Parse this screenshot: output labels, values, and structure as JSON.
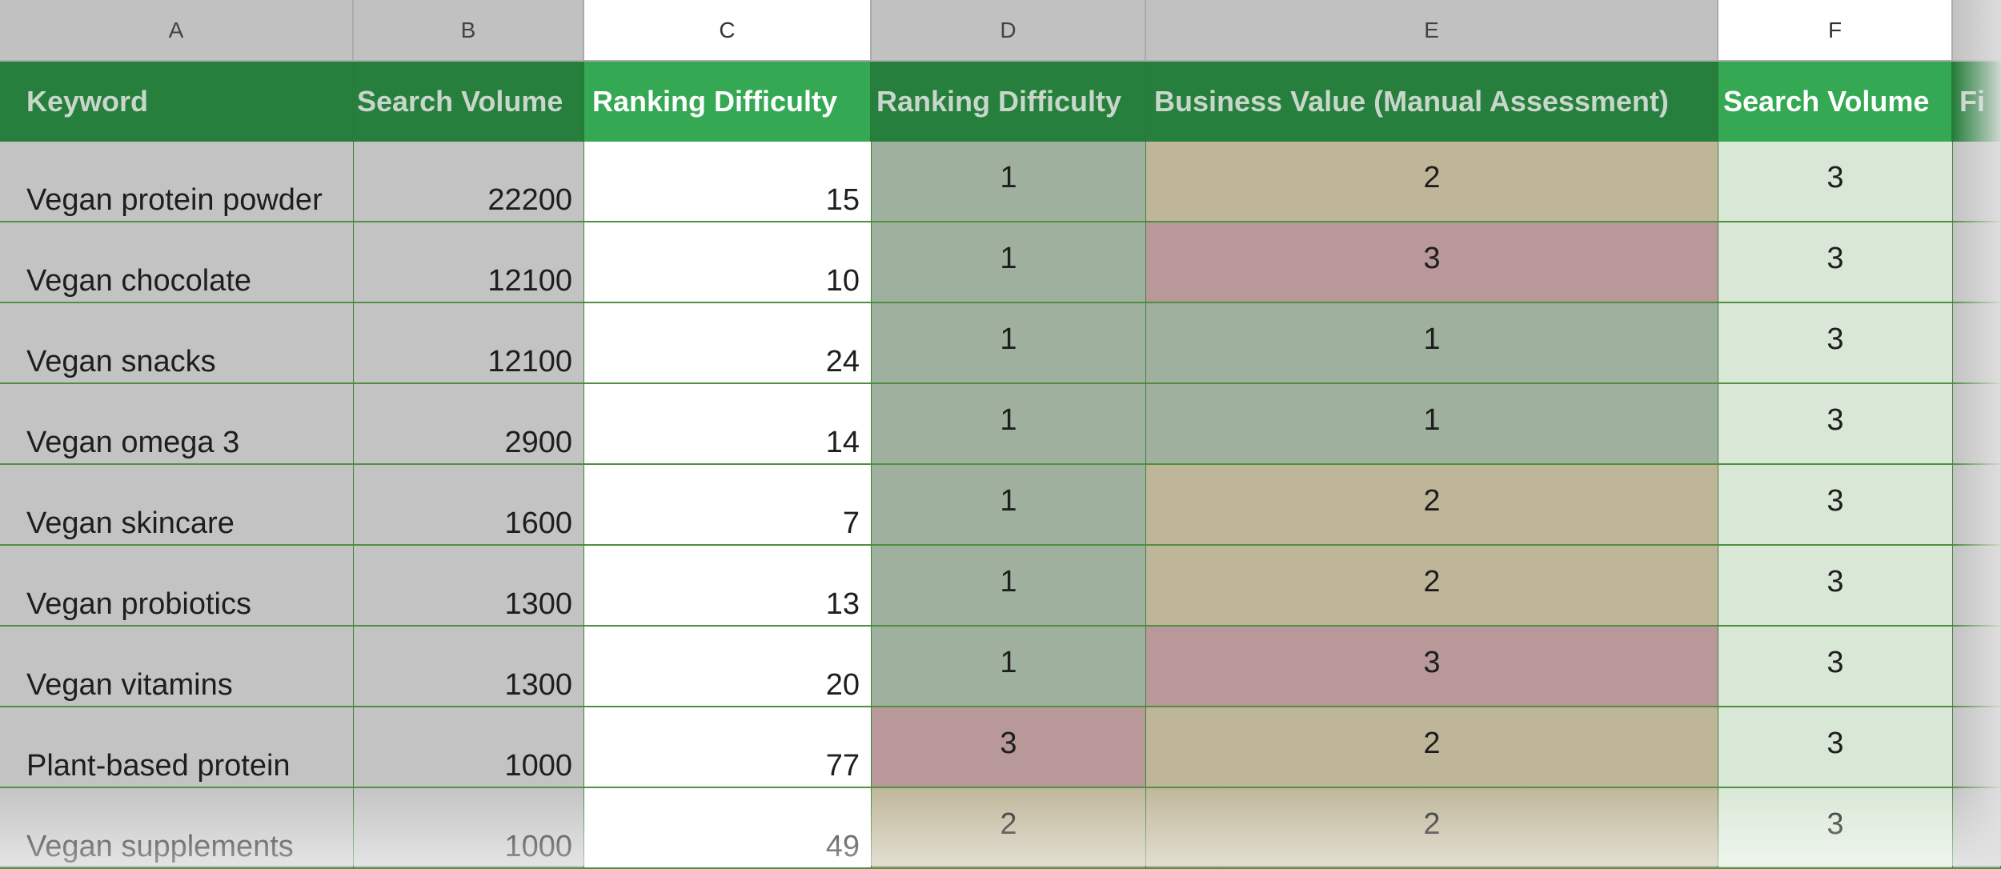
{
  "columns": [
    "A",
    "B",
    "C",
    "D",
    "E",
    "F"
  ],
  "headers": {
    "a": "Keyword",
    "b": "Search Volume",
    "c": "Ranking Difficulty",
    "d": "Ranking Difficulty",
    "e": "Business Value (Manual Assessment)",
    "f": "Search Volume",
    "g": "Fi"
  },
  "rows": [
    {
      "keyword": "Vegan protein powder",
      "volume": "22200",
      "difficulty": "15",
      "rd_score": "1",
      "bv_score": "2",
      "sv_score": "3"
    },
    {
      "keyword": "Vegan chocolate",
      "volume": "12100",
      "difficulty": "10",
      "rd_score": "1",
      "bv_score": "3",
      "sv_score": "3"
    },
    {
      "keyword": "Vegan snacks",
      "volume": "12100",
      "difficulty": "24",
      "rd_score": "1",
      "bv_score": "1",
      "sv_score": "3"
    },
    {
      "keyword": "Vegan omega 3",
      "volume": "2900",
      "difficulty": "14",
      "rd_score": "1",
      "bv_score": "1",
      "sv_score": "3"
    },
    {
      "keyword": "Vegan skincare",
      "volume": "1600",
      "difficulty": "7",
      "rd_score": "1",
      "bv_score": "2",
      "sv_score": "3"
    },
    {
      "keyword": "Vegan probiotics",
      "volume": "1300",
      "difficulty": "13",
      "rd_score": "1",
      "bv_score": "2",
      "sv_score": "3"
    },
    {
      "keyword": "Vegan vitamins",
      "volume": "1300",
      "difficulty": "20",
      "rd_score": "1",
      "bv_score": "3",
      "sv_score": "3"
    },
    {
      "keyword": "Plant-based protein",
      "volume": "1000",
      "difficulty": "77",
      "rd_score": "3",
      "bv_score": "2",
      "sv_score": "3"
    },
    {
      "keyword": "Vegan supplements",
      "volume": "1000",
      "difficulty": "49",
      "rd_score": "2",
      "bv_score": "2",
      "sv_score": "3"
    }
  ],
  "colors": {
    "header_green": "#267f3d",
    "header_highlight": "#34a853",
    "score_1": "#9fb09e",
    "score_2": "#bfb699",
    "score_3": "#b89899",
    "light_green": "#d9e8d6"
  }
}
